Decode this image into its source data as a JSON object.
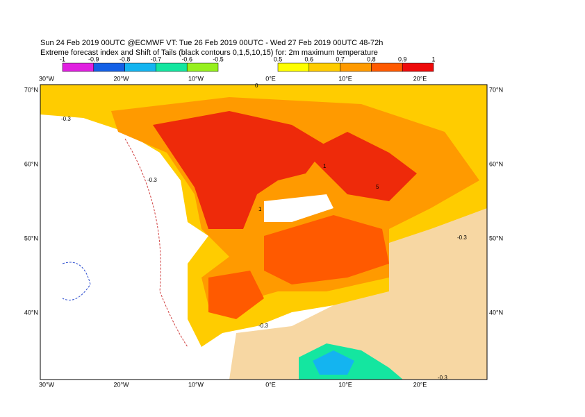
{
  "title": [
    "Sun 24 Feb 2019 00UTC @ECMWF VT: Tue 26 Feb 2019 00UTC - Wed 27 Feb 2019 00UTC  48-72h",
    "Extreme forecast index and Shift of Tails (black contours 0,1,5,10,15) for: 2m maximum temperature"
  ],
  "colorbar_negative": {
    "labels": [
      "-1",
      "-0.9",
      "-0.8",
      "-0.7",
      "-0.6",
      "-0.5"
    ],
    "colors": [
      "#e020e0",
      "#1460e6",
      "#14b4f0",
      "#14e6a0",
      "#96f01e"
    ]
  },
  "colorbar_positive": {
    "labels": [
      "0.5",
      "0.6",
      "0.7",
      "0.8",
      "0.9",
      "1"
    ],
    "colors": [
      "#ffff00",
      "#ffcc00",
      "#ff9a00",
      "#ff5a00",
      "#ee0a0a"
    ]
  },
  "lon_labels": [
    "30°W",
    "20°W",
    "10°W",
    "0°E",
    "10°E",
    "20°E"
  ],
  "lat_labels": [
    "70°N",
    "60°N",
    "50°N",
    "40°N"
  ],
  "contour_labels": [
    "-0.3",
    "-0.3",
    "-0.3",
    "-0.3",
    "-0.3",
    "0",
    "1",
    "1",
    "5"
  ]
}
